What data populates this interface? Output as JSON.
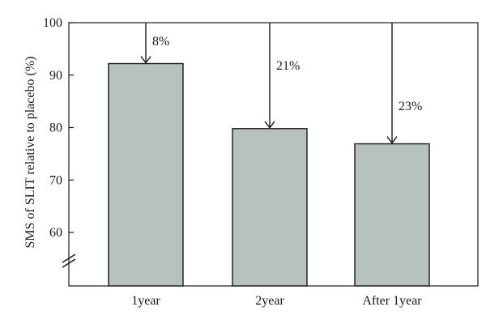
{
  "chart_data": {
    "type": "bar",
    "ylabel": "SMS of SLIT relative to placebo (%)",
    "xlabel": "",
    "ylim": [
      50,
      100
    ],
    "yticks": [
      60,
      70,
      80,
      90,
      100
    ],
    "axis_break": true,
    "categories": [
      "1year",
      "2year",
      "After 1year"
    ],
    "values": [
      92.2,
      79.8,
      76.9
    ],
    "annotations": [
      "8%",
      "21%",
      "23%"
    ],
    "bar_color": "#b7c1bf",
    "bar_edge_color": "#1a1a1a",
    "grid": false
  }
}
